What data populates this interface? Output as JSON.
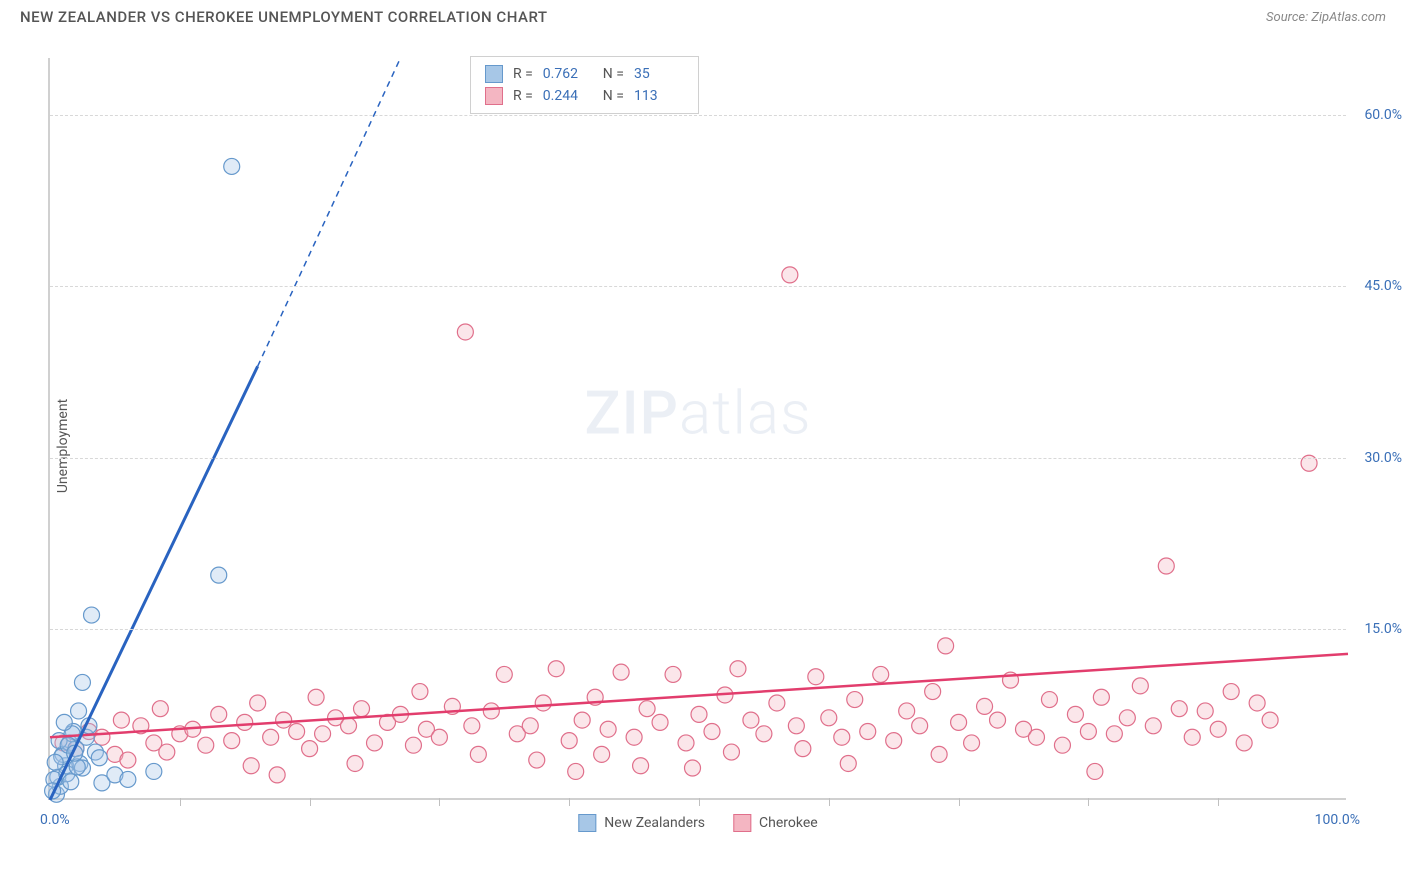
{
  "header": {
    "title": "NEW ZEALANDER VS CHEROKEE UNEMPLOYMENT CORRELATION CHART",
    "source": "Source: ZipAtlas.com"
  },
  "chart": {
    "type": "scatter",
    "ylabel": "Unemployment",
    "watermark_bold": "ZIP",
    "watermark_light": "atlas",
    "xlim": [
      0,
      100
    ],
    "ylim": [
      0,
      65
    ],
    "xtick_step": 10,
    "xlabel_min": "0.0%",
    "xlabel_max": "100.0%",
    "ytick_labels": [
      "15.0%",
      "30.0%",
      "45.0%",
      "60.0%"
    ],
    "ytick_values": [
      15,
      30,
      45,
      60
    ],
    "grid_color": "#d8d8d8",
    "background_color": "#ffffff",
    "axis_color": "#d0d0d0",
    "marker_radius": 8,
    "series": {
      "nz": {
        "label": "New Zealanders",
        "color_fill": "#a7c7e7",
        "color_stroke": "#6699cc",
        "R": "0.762",
        "N": "35",
        "trend": {
          "x1": 0,
          "y1": 0,
          "x2": 16,
          "y2": 38,
          "dashed_extension": {
            "x2": 27,
            "y2": 65
          },
          "color": "#2963c0",
          "width": 3
        },
        "points": [
          {
            "x": 0.5,
            "y": 0.5
          },
          {
            "x": 0.8,
            "y": 1.2
          },
          {
            "x": 0.6,
            "y": 2
          },
          {
            "x": 1.2,
            "y": 3
          },
          {
            "x": 1,
            "y": 4
          },
          {
            "x": 1.5,
            "y": 5
          },
          {
            "x": 1.8,
            "y": 6
          },
          {
            "x": 2,
            "y": 4.5
          },
          {
            "x": 2.3,
            "y": 3.2
          },
          {
            "x": 2.5,
            "y": 2.8
          },
          {
            "x": 0.3,
            "y": 1.8
          },
          {
            "x": 0.9,
            "y": 3.8
          },
          {
            "x": 1.3,
            "y": 2.3
          },
          {
            "x": 2.8,
            "y": 5.5
          },
          {
            "x": 3,
            "y": 6.5
          },
          {
            "x": 2.2,
            "y": 7.8
          },
          {
            "x": 3.5,
            "y": 4.2
          },
          {
            "x": 1.7,
            "y": 5.8
          },
          {
            "x": 0.7,
            "y": 5.2
          },
          {
            "x": 1.1,
            "y": 6.8
          },
          {
            "x": 4,
            "y": 1.5
          },
          {
            "x": 5,
            "y": 2.2
          },
          {
            "x": 6,
            "y": 1.8
          },
          {
            "x": 8,
            "y": 2.5
          },
          {
            "x": 2.5,
            "y": 10.3
          },
          {
            "x": 3.2,
            "y": 16.2
          },
          {
            "x": 13,
            "y": 19.7
          },
          {
            "x": 14,
            "y": 55.5
          },
          {
            "x": 1.4,
            "y": 4.8
          },
          {
            "x": 0.4,
            "y": 3.3
          },
          {
            "x": 1.6,
            "y": 1.6
          },
          {
            "x": 2.1,
            "y": 2.9
          },
          {
            "x": 3.8,
            "y": 3.7
          },
          {
            "x": 0.2,
            "y": 0.8
          },
          {
            "x": 1.9,
            "y": 4.1
          }
        ]
      },
      "cherokee": {
        "label": "Cherokee",
        "color_fill": "#f4b6c2",
        "color_stroke": "#e06f8b",
        "R": "0.244",
        "N": "113",
        "trend": {
          "x1": 0,
          "y1": 5.5,
          "x2": 100,
          "y2": 12.8,
          "color": "#e23d6d",
          "width": 2.5
        },
        "points": [
          {
            "x": 1,
            "y": 5
          },
          {
            "x": 2,
            "y": 4.5
          },
          {
            "x": 3,
            "y": 6
          },
          {
            "x": 4,
            "y": 5.5
          },
          {
            "x": 5,
            "y": 4
          },
          {
            "x": 5.5,
            "y": 7
          },
          {
            "x": 6,
            "y": 3.5
          },
          {
            "x": 7,
            "y": 6.5
          },
          {
            "x": 8,
            "y": 5
          },
          {
            "x": 8.5,
            "y": 8
          },
          {
            "x": 9,
            "y": 4.2
          },
          {
            "x": 10,
            "y": 5.8
          },
          {
            "x": 11,
            "y": 6.2
          },
          {
            "x": 12,
            "y": 4.8
          },
          {
            "x": 13,
            "y": 7.5
          },
          {
            "x": 14,
            "y": 5.2
          },
          {
            "x": 15,
            "y": 6.8
          },
          {
            "x": 15.5,
            "y": 3
          },
          {
            "x": 16,
            "y": 8.5
          },
          {
            "x": 17,
            "y": 5.5
          },
          {
            "x": 17.5,
            "y": 2.2
          },
          {
            "x": 18,
            "y": 7
          },
          {
            "x": 19,
            "y": 6
          },
          {
            "x": 20,
            "y": 4.5
          },
          {
            "x": 20.5,
            "y": 9
          },
          {
            "x": 21,
            "y": 5.8
          },
          {
            "x": 22,
            "y": 7.2
          },
          {
            "x": 23,
            "y": 6.5
          },
          {
            "x": 23.5,
            "y": 3.2
          },
          {
            "x": 24,
            "y": 8
          },
          {
            "x": 25,
            "y": 5
          },
          {
            "x": 26,
            "y": 6.8
          },
          {
            "x": 27,
            "y": 7.5
          },
          {
            "x": 28,
            "y": 4.8
          },
          {
            "x": 28.5,
            "y": 9.5
          },
          {
            "x": 29,
            "y": 6.2
          },
          {
            "x": 30,
            "y": 5.5
          },
          {
            "x": 31,
            "y": 8.2
          },
          {
            "x": 32,
            "y": 41
          },
          {
            "x": 32.5,
            "y": 6.5
          },
          {
            "x": 33,
            "y": 4
          },
          {
            "x": 34,
            "y": 7.8
          },
          {
            "x": 35,
            "y": 11
          },
          {
            "x": 36,
            "y": 5.8
          },
          {
            "x": 37,
            "y": 6.5
          },
          {
            "x": 37.5,
            "y": 3.5
          },
          {
            "x": 38,
            "y": 8.5
          },
          {
            "x": 39,
            "y": 11.5
          },
          {
            "x": 40,
            "y": 5.2
          },
          {
            "x": 40.5,
            "y": 2.5
          },
          {
            "x": 41,
            "y": 7
          },
          {
            "x": 42,
            "y": 9
          },
          {
            "x": 42.5,
            "y": 4
          },
          {
            "x": 43,
            "y": 6.2
          },
          {
            "x": 44,
            "y": 11.2
          },
          {
            "x": 45,
            "y": 5.5
          },
          {
            "x": 45.5,
            "y": 3
          },
          {
            "x": 46,
            "y": 8
          },
          {
            "x": 47,
            "y": 6.8
          },
          {
            "x": 48,
            "y": 11
          },
          {
            "x": 49,
            "y": 5
          },
          {
            "x": 49.5,
            "y": 2.8
          },
          {
            "x": 50,
            "y": 7.5
          },
          {
            "x": 51,
            "y": 6
          },
          {
            "x": 52,
            "y": 9.2
          },
          {
            "x": 52.5,
            "y": 4.2
          },
          {
            "x": 53,
            "y": 11.5
          },
          {
            "x": 54,
            "y": 7
          },
          {
            "x": 55,
            "y": 5.8
          },
          {
            "x": 56,
            "y": 8.5
          },
          {
            "x": 57,
            "y": 46
          },
          {
            "x": 57.5,
            "y": 6.5
          },
          {
            "x": 58,
            "y": 4.5
          },
          {
            "x": 59,
            "y": 10.8
          },
          {
            "x": 60,
            "y": 7.2
          },
          {
            "x": 61,
            "y": 5.5
          },
          {
            "x": 61.5,
            "y": 3.2
          },
          {
            "x": 62,
            "y": 8.8
          },
          {
            "x": 63,
            "y": 6
          },
          {
            "x": 64,
            "y": 11
          },
          {
            "x": 65,
            "y": 5.2
          },
          {
            "x": 66,
            "y": 7.8
          },
          {
            "x": 67,
            "y": 6.5
          },
          {
            "x": 68,
            "y": 9.5
          },
          {
            "x": 68.5,
            "y": 4
          },
          {
            "x": 69,
            "y": 13.5
          },
          {
            "x": 70,
            "y": 6.8
          },
          {
            "x": 71,
            "y": 5
          },
          {
            "x": 72,
            "y": 8.2
          },
          {
            "x": 73,
            "y": 7
          },
          {
            "x": 74,
            "y": 10.5
          },
          {
            "x": 75,
            "y": 6.2
          },
          {
            "x": 76,
            "y": 5.5
          },
          {
            "x": 77,
            "y": 8.8
          },
          {
            "x": 78,
            "y": 4.8
          },
          {
            "x": 79,
            "y": 7.5
          },
          {
            "x": 80,
            "y": 6
          },
          {
            "x": 80.5,
            "y": 2.5
          },
          {
            "x": 81,
            "y": 9
          },
          {
            "x": 82,
            "y": 5.8
          },
          {
            "x": 83,
            "y": 7.2
          },
          {
            "x": 84,
            "y": 10
          },
          {
            "x": 85,
            "y": 6.5
          },
          {
            "x": 86,
            "y": 20.5
          },
          {
            "x": 87,
            "y": 8
          },
          {
            "x": 88,
            "y": 5.5
          },
          {
            "x": 89,
            "y": 7.8
          },
          {
            "x": 90,
            "y": 6.2
          },
          {
            "x": 91,
            "y": 9.5
          },
          {
            "x": 92,
            "y": 5
          },
          {
            "x": 93,
            "y": 8.5
          },
          {
            "x": 94,
            "y": 7
          },
          {
            "x": 97,
            "y": 29.5
          }
        ]
      }
    }
  }
}
